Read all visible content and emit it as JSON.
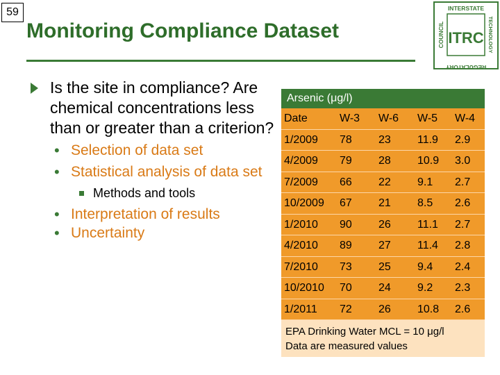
{
  "slide": {
    "number": "59",
    "title": "Monitoring Compliance Dataset"
  },
  "logo": {
    "top_text": "INTERSTATE",
    "left_text": "COUNCIL",
    "right_text": "TECHNOLOGY",
    "bottom_text": "REGULATORY",
    "center_text": "ITRC",
    "color": "#3a7a35"
  },
  "bullets": {
    "main": "Is the site in compliance? Are chemical concentrations less than or greater than a criterion?",
    "sub1": "Selection of data set",
    "sub2": "Statistical analysis of data set",
    "sub2_child": "Methods and tools",
    "sub3": "Interpretation of results",
    "sub4": "Uncertainty"
  },
  "table": {
    "header": "Arsenic (μg/l)",
    "columns": [
      "Date",
      "W-3",
      "W-6",
      "W-5",
      "W-4"
    ],
    "rows": [
      [
        "1/2009",
        "78",
        "23",
        "11.9",
        "2.9"
      ],
      [
        "4/2009",
        "79",
        "28",
        "10.9",
        "3.0"
      ],
      [
        "7/2009",
        "66",
        "22",
        "9.1",
        "2.7"
      ],
      [
        "10/2009",
        "67",
        "21",
        "8.5",
        "2.6"
      ],
      [
        "1/2010",
        "90",
        "26",
        "11.1",
        "2.7"
      ],
      [
        "4/2010",
        "89",
        "27",
        "11.4",
        "2.8"
      ],
      [
        "7/2010",
        "73",
        "25",
        "9.4",
        "2.4"
      ],
      [
        "10/2010",
        "70",
        "24",
        "9.2",
        "2.3"
      ],
      [
        "1/2011",
        "72",
        "26",
        "10.8",
        "2.6"
      ]
    ],
    "footer_line1": "EPA Drinking Water MCL = 10 μg/l",
    "footer_line2": "Data are measured values"
  },
  "colors": {
    "green": "#3a7a35",
    "orange": "#f09a2a",
    "light_orange": "#fde2bf",
    "bullet_orange": "#d97a16"
  }
}
